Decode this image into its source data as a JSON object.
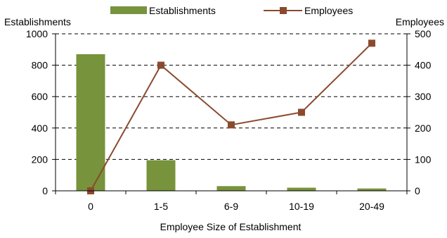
{
  "chart_data": {
    "type": "bar+line",
    "xlabel": "Employee Size of Establishment",
    "categories": [
      "0",
      "1-5",
      "6-9",
      "10-19",
      "20-49"
    ],
    "y_left": {
      "label": "Establishments",
      "ylim": [
        0,
        1000
      ],
      "ticks": [
        "0",
        "200",
        "400",
        "600",
        "800",
        "1000"
      ]
    },
    "y_right": {
      "label": "Employees",
      "ylim": [
        0,
        500
      ],
      "ticks": [
        "0",
        "100",
        "200",
        "300",
        "400",
        "500"
      ]
    },
    "grid": "horizontal dashed",
    "legend_position": "top",
    "series": [
      {
        "name": "Establishments",
        "kind": "bar",
        "axis": "left",
        "color": "#77933C",
        "values": [
          870,
          195,
          30,
          20,
          15
        ]
      },
      {
        "name": "Employees",
        "kind": "line",
        "axis": "right",
        "color": "#8B4A2E",
        "marker": "square",
        "values": [
          0,
          400,
          210,
          250,
          470
        ]
      }
    ]
  }
}
